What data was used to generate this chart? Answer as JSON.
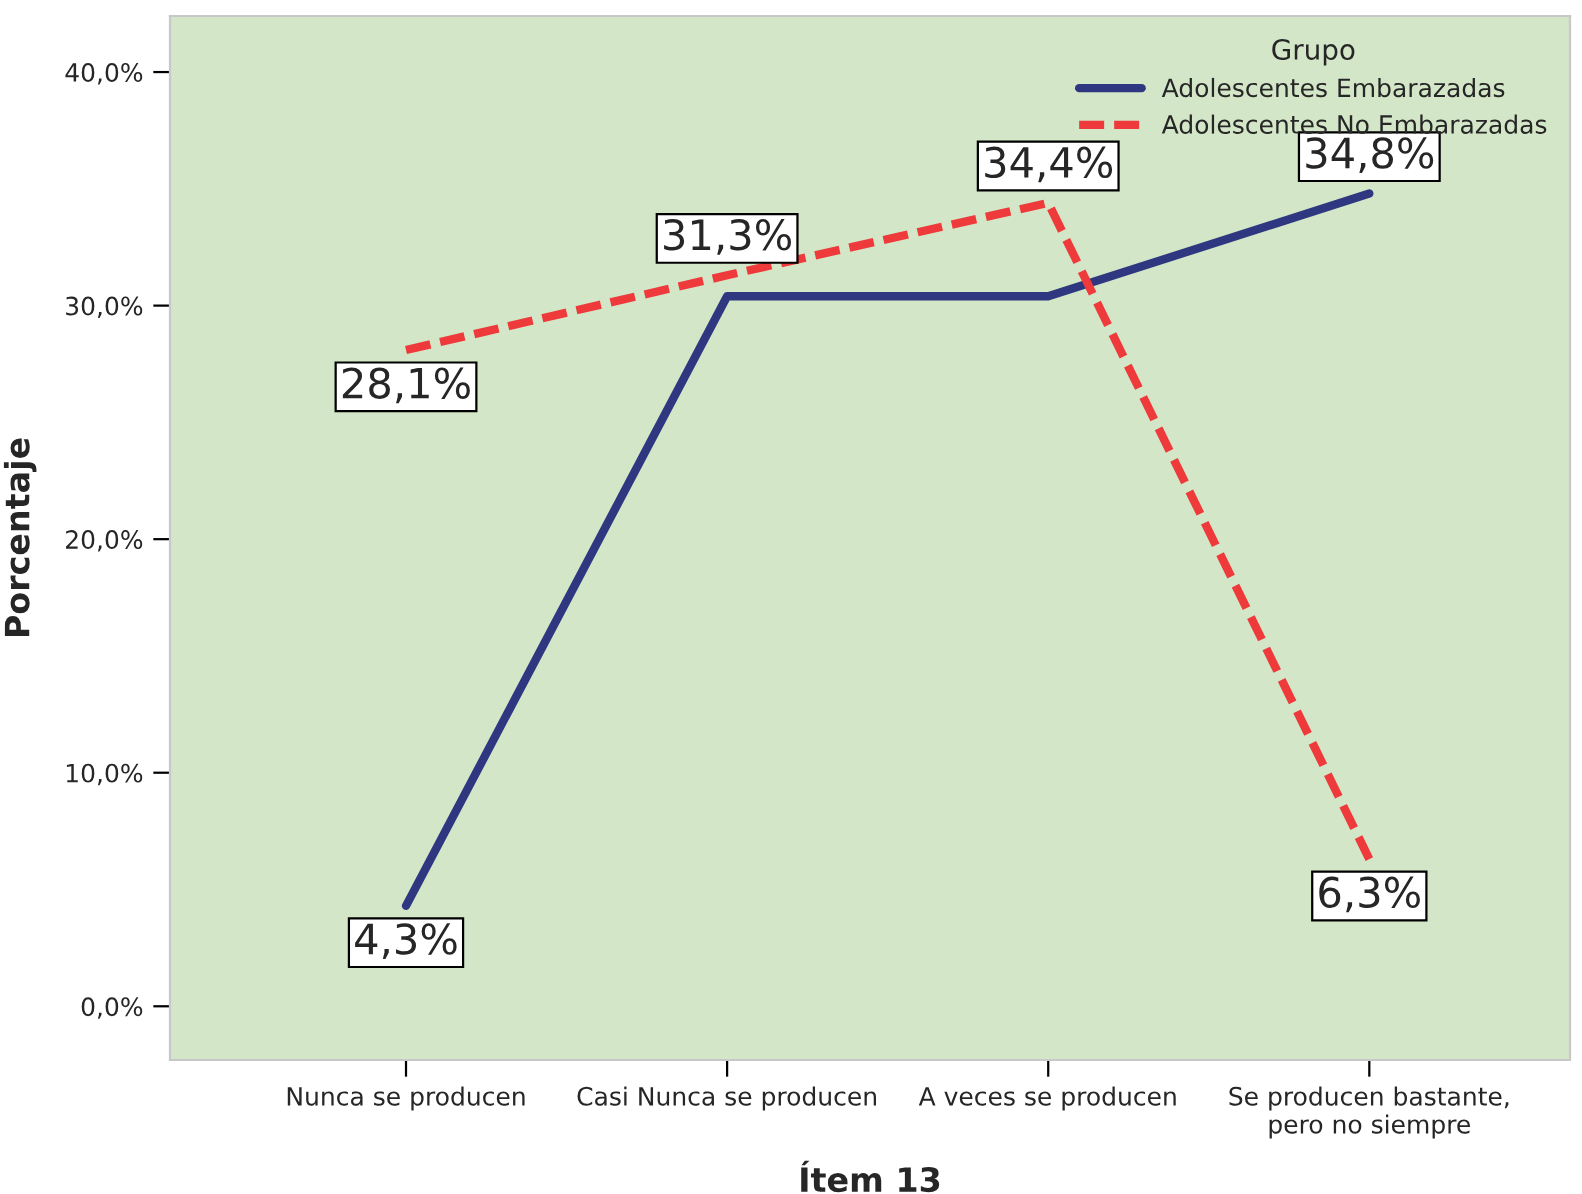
{
  "chart_data": {
    "type": "line",
    "xlabel": "Ítem 13",
    "ylabel": "Porcentaje",
    "legend_title": "Grupo",
    "legend": "top right",
    "grid": false,
    "categories": [
      "Nunca se producen",
      "Casi Nunca se producen",
      "A veces se producen",
      "Se producen bastante,\npero no siempre"
    ],
    "ylim": [
      -2.3,
      42.4
    ],
    "yticks": [
      {
        "value": 0,
        "label": "0,0%"
      },
      {
        "value": 10,
        "label": "10,0%"
      },
      {
        "value": 20,
        "label": "20,0%"
      },
      {
        "value": 30,
        "label": "30,0%"
      },
      {
        "value": 40,
        "label": "40,0%"
      }
    ],
    "series": [
      {
        "name": "Adolescentes Embarazadas",
        "color": "#2e3780",
        "line_style": "solid",
        "values": [
          4.3,
          30.4,
          30.4,
          34.8
        ],
        "value_labels": [
          "4,3%",
          null,
          null,
          "34,8%"
        ]
      },
      {
        "name": "Adolescentes No Embarazadas",
        "color": "#ee3a3b",
        "line_style": "dashed",
        "values": [
          28.1,
          31.3,
          34.4,
          6.3
        ],
        "value_labels": [
          "28,1%",
          "31,3%",
          "34,4%",
          "6,3%"
        ]
      }
    ]
  }
}
